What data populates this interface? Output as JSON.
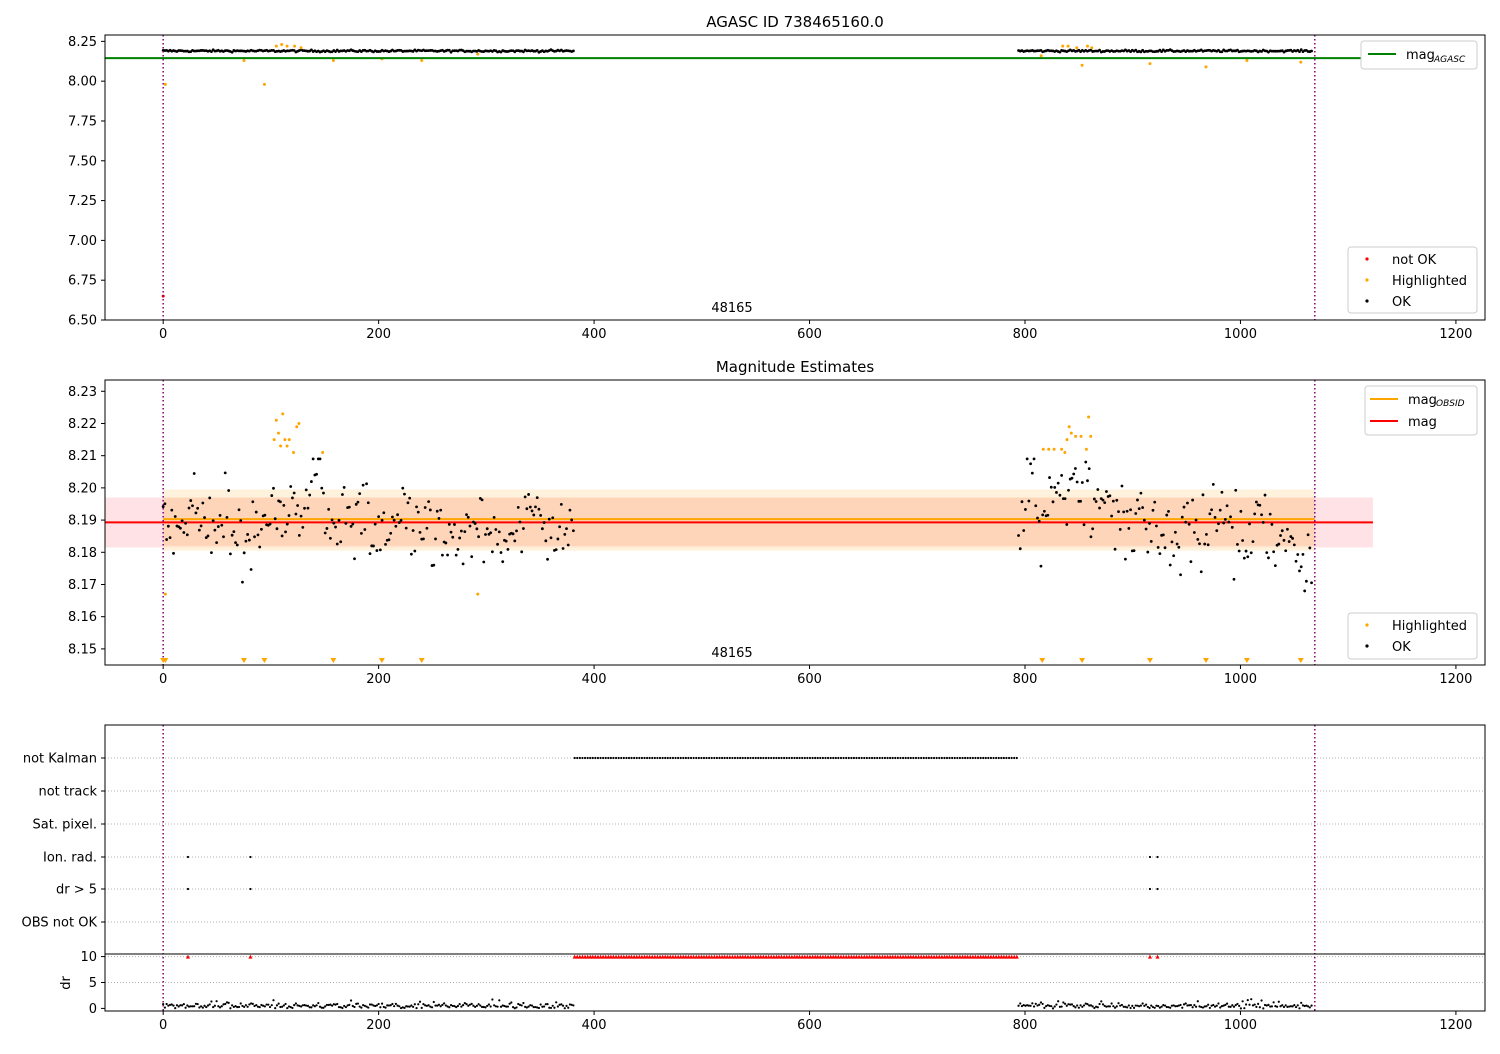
{
  "chart_data": [
    {
      "type": "scatter",
      "title": "AGASC ID 738465160.0",
      "obsid_label": "48165",
      "xlim": [
        -54,
        1227
      ],
      "ylim": [
        6.5,
        8.29
      ],
      "xticks": [
        "0",
        "200",
        "400",
        "600",
        "800",
        "1000",
        "1200"
      ],
      "xtick_values": [
        0,
        200,
        400,
        600,
        800,
        1000,
        1200
      ],
      "yticks": [
        "6.50",
        "6.75",
        "7.00",
        "7.25",
        "7.50",
        "7.75",
        "8.00",
        "8.25"
      ],
      "ytick_values": [
        6.5,
        6.75,
        7.0,
        7.25,
        7.5,
        7.75,
        8.0,
        8.25
      ],
      "obs_bounds": [
        0,
        1069
      ],
      "mag_agasc": {
        "label_main": "mag",
        "label_sub": "AGASC",
        "value": 8.145,
        "x_range": [
          -54,
          1123
        ],
        "color": "#008000"
      },
      "series": [
        {
          "name": "not OK",
          "color": "#ff0000",
          "points": [
            {
              "x": 0,
              "y": 6.65
            }
          ]
        },
        {
          "name": "Highlighted",
          "color": "#ffa500",
          "points": [
            {
              "x": 2,
              "y": 7.98
            },
            {
              "x": 75,
              "y": 8.13
            },
            {
              "x": 94,
              "y": 7.98
            },
            {
              "x": 105,
              "y": 8.22
            },
            {
              "x": 110,
              "y": 8.23
            },
            {
              "x": 115,
              "y": 8.22
            },
            {
              "x": 122,
              "y": 8.22
            },
            {
              "x": 128,
              "y": 8.21
            },
            {
              "x": 158,
              "y": 8.13
            },
            {
              "x": 203,
              "y": 8.14
            },
            {
              "x": 240,
              "y": 8.13
            },
            {
              "x": 292,
              "y": 8.17
            },
            {
              "x": 815,
              "y": 8.16
            },
            {
              "x": 835,
              "y": 8.22
            },
            {
              "x": 840,
              "y": 8.22
            },
            {
              "x": 848,
              "y": 8.21
            },
            {
              "x": 853,
              "y": 8.1
            },
            {
              "x": 858,
              "y": 8.22
            },
            {
              "x": 862,
              "y": 8.21
            },
            {
              "x": 916,
              "y": 8.11
            },
            {
              "x": 968,
              "y": 8.09
            },
            {
              "x": 1006,
              "y": 8.13
            },
            {
              "x": 1056,
              "y": 8.12
            }
          ]
        },
        {
          "name": "OK",
          "color": "#000000",
          "segments": [
            {
              "x0": 0,
              "x1": 382,
              "step": 1.6,
              "mean": 8.19,
              "amp": 0.009
            },
            {
              "x0": 794,
              "x1": 1067,
              "step": 1.6,
              "mean": 8.19,
              "amp": 0.009
            }
          ]
        }
      ],
      "legend_top": "upper right",
      "legend_bottom": "lower right"
    },
    {
      "type": "scatter",
      "title": "Magnitude Estimates",
      "obsid_label": "48165",
      "xlim": [
        -54,
        1227
      ],
      "ylim": [
        8.145,
        8.2335
      ],
      "xticks": [
        "0",
        "200",
        "400",
        "600",
        "800",
        "1000",
        "1200"
      ],
      "xtick_values": [
        0,
        200,
        400,
        600,
        800,
        1000,
        1200
      ],
      "yticks": [
        "8.15",
        "8.16",
        "8.17",
        "8.18",
        "8.19",
        "8.20",
        "8.21",
        "8.22",
        "8.23"
      ],
      "ytick_values": [
        8.15,
        8.16,
        8.17,
        8.18,
        8.19,
        8.2,
        8.21,
        8.22,
        8.23
      ],
      "obs_bounds": [
        0,
        1069
      ],
      "mag_obsid": {
        "label_main": "mag",
        "label_sub": "OBSID",
        "value": 8.1903,
        "x_range": [
          0,
          1069
        ],
        "band_inner": [
          8.182,
          8.197
        ],
        "band_outer": [
          8.1805,
          8.1995
        ],
        "color": "#ffa500"
      },
      "mag": {
        "label": "mag",
        "value": 8.1893,
        "x_range": [
          -54,
          1123
        ],
        "band": [
          8.1815,
          8.197
        ],
        "color": "#ff0000"
      },
      "highlighted_points": [
        {
          "x": 2,
          "y": 8.167
        },
        {
          "x": 103,
          "y": 8.215
        },
        {
          "x": 105,
          "y": 8.221
        },
        {
          "x": 107,
          "y": 8.217
        },
        {
          "x": 109,
          "y": 8.213
        },
        {
          "x": 111,
          "y": 8.223
        },
        {
          "x": 113,
          "y": 8.215
        },
        {
          "x": 115,
          "y": 8.213
        },
        {
          "x": 117,
          "y": 8.215
        },
        {
          "x": 121,
          "y": 8.211
        },
        {
          "x": 124,
          "y": 8.219
        },
        {
          "x": 126,
          "y": 8.22
        },
        {
          "x": 148,
          "y": 8.211
        },
        {
          "x": 292,
          "y": 8.167
        },
        {
          "x": 817,
          "y": 8.212
        },
        {
          "x": 822,
          "y": 8.212
        },
        {
          "x": 827,
          "y": 8.212
        },
        {
          "x": 834,
          "y": 8.212
        },
        {
          "x": 837,
          "y": 8.211
        },
        {
          "x": 839,
          "y": 8.215
        },
        {
          "x": 841,
          "y": 8.219
        },
        {
          "x": 843,
          "y": 8.217
        },
        {
          "x": 847,
          "y": 8.216
        },
        {
          "x": 852,
          "y": 8.216
        },
        {
          "x": 857,
          "y": 8.212
        },
        {
          "x": 859,
          "y": 8.222
        },
        {
          "x": 861,
          "y": 8.216
        }
      ],
      "highlight_markers_x": [
        0,
        2,
        75,
        94,
        158,
        203,
        240,
        816,
        853,
        916,
        968,
        1006,
        1056
      ],
      "ok_segments": [
        {
          "x0": 0,
          "x1": 382,
          "step": 1.6,
          "mean": 8.19,
          "amp": 0.0075
        },
        {
          "x0": 794,
          "x1": 1067,
          "step": 1.6,
          "mean": 8.187,
          "amp": 0.0085
        }
      ],
      "legend_top": "upper right",
      "legend_bottom": "lower right",
      "legend_entries": [
        "Highlighted",
        "OK"
      ]
    },
    {
      "type": "scatter",
      "xlim": [
        -54,
        1227
      ],
      "xticks": [
        "0",
        "200",
        "400",
        "600",
        "800",
        "1000",
        "1200"
      ],
      "xtick_values": [
        0,
        200,
        400,
        600,
        800,
        1000,
        1200
      ],
      "flag_rows": [
        "not Kalman",
        "not track",
        "Sat. pixel.",
        "Ion. rad.",
        "dr > 5",
        "OBS not OK"
      ],
      "flag_points": {
        "not Kalman": {
          "ranges": [
            [
              382,
              794,
              2.4
            ]
          ]
        },
        "not track": {
          "points": []
        },
        "Sat. pixel.": {
          "points": []
        },
        "Ion. rad.": {
          "points": [
            23,
            81,
            916,
            923
          ]
        },
        "dr > 5": {
          "points": [
            23,
            81,
            916,
            923
          ]
        },
        "OBS not OK": {
          "points": []
        }
      },
      "dr_axis": {
        "ylabel": "dr",
        "yticks": [
          "0",
          "5",
          "10"
        ],
        "ytick_values": [
          0,
          5,
          10
        ],
        "ylim": [
          -0.5,
          10.5
        ]
      },
      "dr_red_markers": {
        "y": 10,
        "x_points": [
          23,
          81,
          916,
          923
        ],
        "ranges": [
          [
            382,
            794,
            2.4
          ]
        ]
      },
      "dr_black_segments": [
        {
          "x0": 0,
          "x1": 382,
          "step": 1.6,
          "mean": 0.5
        },
        {
          "x0": 794,
          "x1": 1067,
          "step": 1.6,
          "mean": 0.5
        }
      ],
      "obs_bounds": [
        0,
        1069
      ]
    }
  ]
}
